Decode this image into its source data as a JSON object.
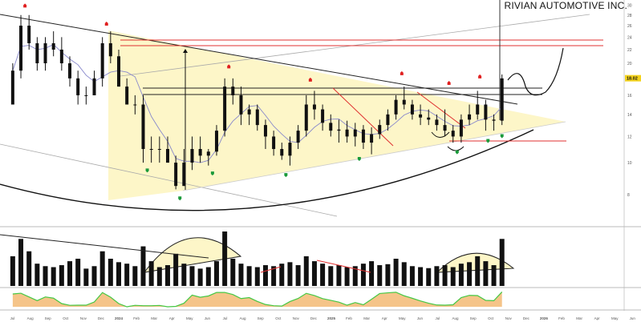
{
  "title": "RIVIAN AUTOMOTIVE INC.",
  "colors": {
    "up_signal": "#e02020",
    "down_signal": "#1a9a3a",
    "triangle": "#fdf6c8",
    "resistance": "#e03030",
    "ma": "#8888cc",
    "price_tag": "#f3d21c",
    "stoch_fill": "#f2b56b",
    "stoch_line": "#44c844"
  },
  "chart_data": {
    "type": "ohlc",
    "scale": "log",
    "ylim": [
      7.5,
      31
    ],
    "price_ticks": [
      30,
      28,
      26,
      24,
      22,
      20,
      16,
      14,
      12,
      10,
      8
    ],
    "current_price": 18.02,
    "current_price_label": "18.02",
    "x_labels": [
      "Jul",
      "Aug",
      "Sep",
      "Oct",
      "Nov",
      "Dec",
      "2024",
      "Feb",
      "Mar",
      "Apr",
      "May",
      "Jun",
      "Jul",
      "Aug",
      "Sep",
      "Oct",
      "Nov",
      "Dec",
      "2025",
      "Feb",
      "Mar",
      "Apr",
      "May",
      "Jun",
      "Jul",
      "Aug",
      "Sep",
      "Oct",
      "Nov",
      "Dec",
      "2026",
      "Feb",
      "Mar",
      "Apr",
      "May",
      "Jun",
      "Jul"
    ],
    "bars": [
      {
        "d": "2023-07-03",
        "o": 15,
        "h": 20,
        "l": 15,
        "c": 19
      },
      {
        "d": "2023-07-17",
        "o": 19,
        "h": 28,
        "l": 18,
        "c": 26
      },
      {
        "d": "2023-07-31",
        "o": 26,
        "h": 28,
        "l": 22,
        "c": 23
      },
      {
        "d": "2023-08-14",
        "o": 23,
        "h": 24,
        "l": 19,
        "c": 20
      },
      {
        "d": "2023-08-28",
        "o": 20,
        "h": 24,
        "l": 19,
        "c": 23
      },
      {
        "d": "2023-09-11",
        "o": 23,
        "h": 25,
        "l": 21,
        "c": 22
      },
      {
        "d": "2023-09-25",
        "o": 22,
        "h": 24,
        "l": 19,
        "c": 20
      },
      {
        "d": "2023-10-09",
        "o": 20,
        "h": 21,
        "l": 17,
        "c": 18
      },
      {
        "d": "2023-10-23",
        "o": 18,
        "h": 19,
        "l": 15,
        "c": 16
      },
      {
        "d": "2023-11-06",
        "o": 16,
        "h": 17,
        "l": 15,
        "c": 16
      },
      {
        "d": "2023-11-20",
        "o": 16,
        "h": 19,
        "l": 16,
        "c": 18
      },
      {
        "d": "2023-12-04",
        "o": 18,
        "h": 24,
        "l": 17,
        "c": 23
      },
      {
        "d": "2023-12-18",
        "o": 23,
        "h": 25,
        "l": 20,
        "c": 21
      },
      {
        "d": "2024-01-01",
        "o": 21,
        "h": 22,
        "l": 17,
        "c": 17
      },
      {
        "d": "2024-01-15",
        "o": 17,
        "h": 18,
        "l": 15,
        "c": 15
      },
      {
        "d": "2024-01-29",
        "o": 15,
        "h": 16,
        "l": 14,
        "c": 15
      },
      {
        "d": "2024-02-12",
        "o": 15,
        "h": 16,
        "l": 10,
        "c": 11
      },
      {
        "d": "2024-02-26",
        "o": 11,
        "h": 12,
        "l": 10,
        "c": 11
      },
      {
        "d": "2024-03-11",
        "o": 11,
        "h": 12,
        "l": 10,
        "c": 11
      },
      {
        "d": "2024-03-25",
        "o": 11,
        "h": 12,
        "l": 10,
        "c": 10
      },
      {
        "d": "2024-04-08",
        "o": 10,
        "h": 10.5,
        "l": 8.3,
        "c": 8.5
      },
      {
        "d": "2024-04-22",
        "o": 8.5,
        "h": 11,
        "l": 8.5,
        "c": 10
      },
      {
        "d": "2024-05-06",
        "o": 10,
        "h": 12,
        "l": 9.5,
        "c": 11
      },
      {
        "d": "2024-05-20",
        "o": 11,
        "h": 12,
        "l": 10,
        "c": 10.5
      },
      {
        "d": "2024-06-03",
        "o": 10.5,
        "h": 11,
        "l": 9.8,
        "c": 10.8
      },
      {
        "d": "2024-06-17",
        "o": 10.8,
        "h": 13,
        "l": 10.5,
        "c": 12.5
      },
      {
        "d": "2024-07-01",
        "o": 12.5,
        "h": 18,
        "l": 12,
        "c": 17
      },
      {
        "d": "2024-07-15",
        "o": 17,
        "h": 18,
        "l": 15,
        "c": 16
      },
      {
        "d": "2024-07-29",
        "o": 16,
        "h": 17,
        "l": 13,
        "c": 14
      },
      {
        "d": "2024-08-12",
        "o": 14,
        "h": 15,
        "l": 13,
        "c": 14.5
      },
      {
        "d": "2024-08-26",
        "o": 14.5,
        "h": 15,
        "l": 12.5,
        "c": 13
      },
      {
        "d": "2024-09-09",
        "o": 13,
        "h": 13.5,
        "l": 11,
        "c": 12
      },
      {
        "d": "2024-09-23",
        "o": 12,
        "h": 12.5,
        "l": 10.5,
        "c": 11
      },
      {
        "d": "2024-10-07",
        "o": 11,
        "h": 11.5,
        "l": 10.2,
        "c": 10.5
      },
      {
        "d": "2024-10-21",
        "o": 10.5,
        "h": 12,
        "l": 9.8,
        "c": 11.5
      },
      {
        "d": "2024-11-04",
        "o": 11.5,
        "h": 13,
        "l": 11,
        "c": 12.5
      },
      {
        "d": "2024-11-18",
        "o": 12.5,
        "h": 16,
        "l": 12,
        "c": 15
      },
      {
        "d": "2024-12-02",
        "o": 15,
        "h": 16.5,
        "l": 13.5,
        "c": 14.5
      },
      {
        "d": "2024-12-16",
        "o": 14.5,
        "h": 15,
        "l": 12.5,
        "c": 13.2
      },
      {
        "d": "2024-12-30",
        "o": 13.2,
        "h": 14,
        "l": 12,
        "c": 12.5
      },
      {
        "d": "2025-01-13",
        "o": 12.5,
        "h": 13.5,
        "l": 11.5,
        "c": 12.6
      },
      {
        "d": "2025-01-27",
        "o": 12.6,
        "h": 13.4,
        "l": 11.5,
        "c": 12
      },
      {
        "d": "2025-02-10",
        "o": 12,
        "h": 13.2,
        "l": 11.2,
        "c": 12.6
      },
      {
        "d": "2025-02-24",
        "o": 12.6,
        "h": 13,
        "l": 11,
        "c": 11.5
      },
      {
        "d": "2025-03-10",
        "o": 11.5,
        "h": 12.8,
        "l": 10.6,
        "c": 12.2
      },
      {
        "d": "2025-03-24",
        "o": 12.2,
        "h": 13.5,
        "l": 11.8,
        "c": 13
      },
      {
        "d": "2025-04-07",
        "o": 13,
        "h": 14.5,
        "l": 12.5,
        "c": 14
      },
      {
        "d": "2025-04-21",
        "o": 14,
        "h": 16,
        "l": 13.5,
        "c": 15.5
      },
      {
        "d": "2025-05-05",
        "o": 15.5,
        "h": 17,
        "l": 14.5,
        "c": 15
      },
      {
        "d": "2025-05-19",
        "o": 15,
        "h": 15.5,
        "l": 13.5,
        "c": 14
      },
      {
        "d": "2025-06-02",
        "o": 14,
        "h": 15,
        "l": 13,
        "c": 13.7
      },
      {
        "d": "2025-06-16",
        "o": 13.7,
        "h": 14.5,
        "l": 13,
        "c": 13.5
      },
      {
        "d": "2025-06-30",
        "o": 13.5,
        "h": 14,
        "l": 12.5,
        "c": 13
      },
      {
        "d": "2025-07-14",
        "o": 13,
        "h": 14.5,
        "l": 12,
        "c": 12.5
      },
      {
        "d": "2025-07-28",
        "o": 12.5,
        "h": 13,
        "l": 11.5,
        "c": 12
      },
      {
        "d": "2025-08-11",
        "o": 12,
        "h": 14,
        "l": 11.5,
        "c": 13.5
      },
      {
        "d": "2025-08-25",
        "o": 13.5,
        "h": 15,
        "l": 13,
        "c": 14
      },
      {
        "d": "2025-09-08",
        "o": 14,
        "h": 16.5,
        "l": 13.5,
        "c": 15
      },
      {
        "d": "2025-09-22",
        "o": 15,
        "h": 15.5,
        "l": 12.5,
        "c": 13.5
      },
      {
        "d": "2025-10-06",
        "o": 13.5,
        "h": 14,
        "l": 12.5,
        "c": 13.4
      },
      {
        "d": "2025-10-20",
        "o": 13.4,
        "h": 18.5,
        "l": 13,
        "c": 18
      }
    ],
    "volume": [
      60,
      95,
      70,
      45,
      40,
      38,
      42,
      50,
      55,
      35,
      40,
      70,
      55,
      48,
      45,
      40,
      80,
      50,
      38,
      42,
      65,
      45,
      40,
      35,
      38,
      50,
      110,
      55,
      45,
      40,
      38,
      42,
      40,
      45,
      48,
      42,
      60,
      50,
      45,
      40,
      42,
      38,
      40,
      45,
      50,
      42,
      44,
      55,
      48,
      40,
      38,
      36,
      40,
      42,
      38,
      45,
      48,
      60,
      50,
      42,
      95
    ],
    "signals": [
      {
        "d": "2023-07-24",
        "p": 29.5,
        "t": "sell"
      },
      {
        "d": "2023-12-11",
        "p": 26,
        "t": "sell"
      },
      {
        "d": "2024-02-19",
        "p": 9.6,
        "t": "buy"
      },
      {
        "d": "2024-04-15",
        "p": 7.9,
        "t": "buy"
      },
      {
        "d": "2024-06-10",
        "p": 9.4,
        "t": "buy"
      },
      {
        "d": "2024-07-08",
        "p": 19.3,
        "t": "sell"
      },
      {
        "d": "2024-10-14",
        "p": 9.3,
        "t": "buy"
      },
      {
        "d": "2024-11-25",
        "p": 17.6,
        "t": "sell"
      },
      {
        "d": "2025-02-17",
        "p": 10.4,
        "t": "buy"
      },
      {
        "d": "2025-05-01",
        "p": 18.4,
        "t": "sell"
      },
      {
        "d": "2025-07-21",
        "p": 17.2,
        "t": "sell"
      },
      {
        "d": "2025-08-04",
        "p": 10.9,
        "t": "buy"
      },
      {
        "d": "2025-09-12",
        "p": 18,
        "t": "sell"
      },
      {
        "d": "2025-09-26",
        "p": 11.8,
        "t": "buy"
      },
      {
        "d": "2025-10-20",
        "p": 12.2,
        "t": "buy"
      }
    ]
  }
}
